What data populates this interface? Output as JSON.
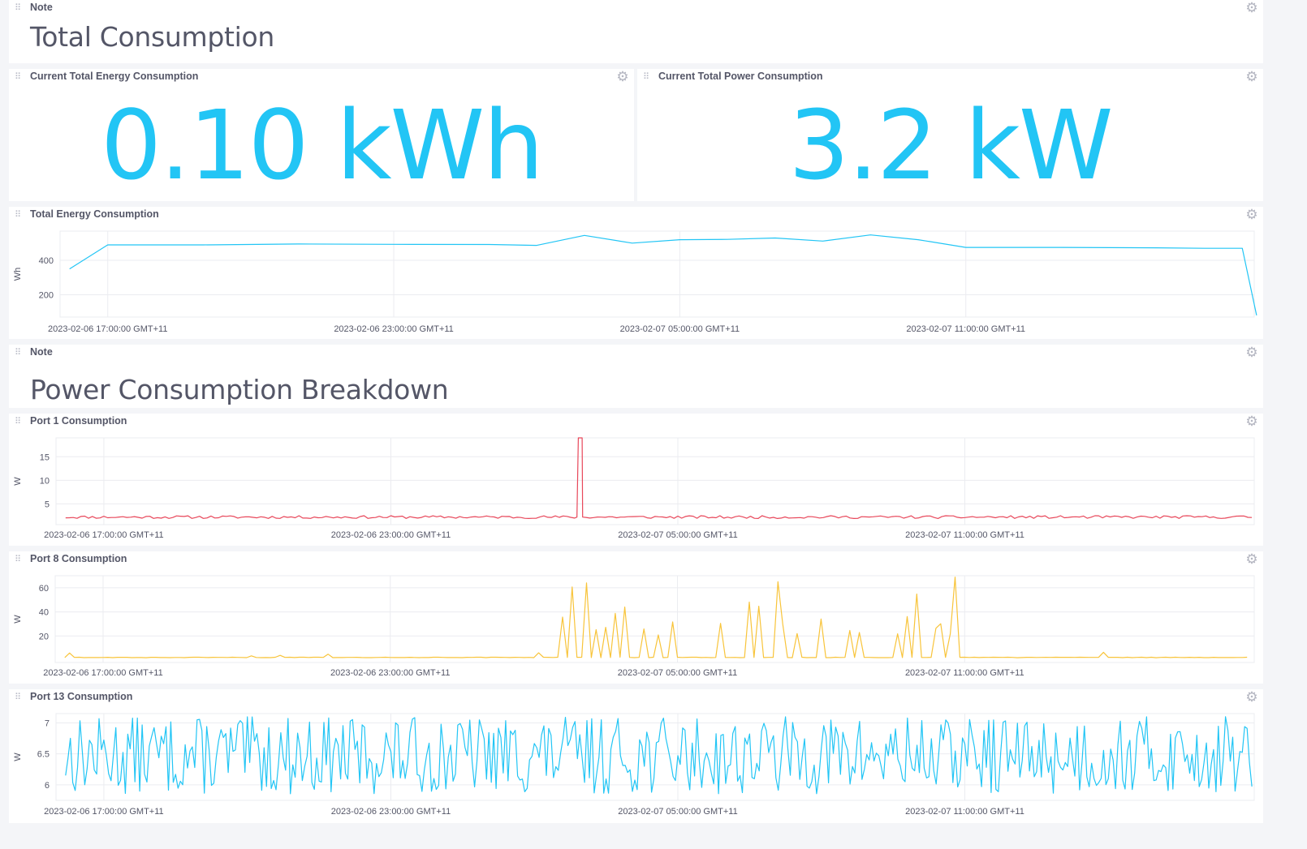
{
  "cells": {
    "note1": {
      "header": "Note",
      "text": "Total Consumption"
    },
    "energy_single": {
      "title": "Current Total Energy Consumption",
      "value": "0.10 kWh"
    },
    "power_single": {
      "title": "Current Total Power Consumption",
      "value": "3.2 kW"
    },
    "energy_graph": {
      "title": "Total Energy Consumption"
    },
    "note2": {
      "header": "Note",
      "text": "Power Consumption Breakdown"
    },
    "port1": {
      "title": "Port 1 Consumption"
    },
    "port8": {
      "title": "Port 8 Consumption"
    },
    "port13": {
      "title": "Port 13 Consumption"
    }
  },
  "icons": {
    "drag": "drag-handle-icon",
    "settings": "gear-icon"
  },
  "colors": {
    "single_stat": "#22c5f5",
    "energy_line": "#22c5f5",
    "port1_line": "#e8475a",
    "port8_line": "#f8c43a",
    "port13_line": "#22c5f5"
  },
  "chart_data": [
    {
      "id": "energy_graph",
      "type": "line",
      "ylabel": "Wh",
      "yticks": [
        200,
        400
      ],
      "ylim": [
        70,
        570
      ],
      "xticks": [
        "2023-02-06 17:00:00 GMT+11",
        "2023-02-06 23:00:00 GMT+11",
        "2023-02-07 05:00:00 GMT+11",
        "2023-02-07 11:00:00 GMT+11"
      ],
      "x_hours": [
        16.2,
        17,
        19,
        21,
        23,
        25,
        26,
        27,
        28,
        29,
        30,
        31,
        32,
        33,
        34,
        35,
        37,
        39,
        40,
        40.8,
        41.1
      ],
      "values": [
        350,
        490,
        490,
        495,
        493,
        492,
        487,
        545,
        500,
        520,
        522,
        530,
        512,
        548,
        520,
        475,
        475,
        473,
        470,
        470,
        80
      ],
      "series": [
        {
          "color": "#22c5f5"
        }
      ]
    },
    {
      "id": "port1",
      "type": "line",
      "ylabel": "W",
      "yticks": [
        5,
        10,
        15
      ],
      "ylim": [
        0.6,
        19
      ],
      "xticks": [
        "2023-02-06 17:00:00 GMT+11",
        "2023-02-06 23:00:00 GMT+11",
        "2023-02-07 05:00:00 GMT+11",
        "2023-02-07 11:00:00 GMT+11"
      ],
      "baseline": 2.2,
      "spike": {
        "x_hours": 26.95,
        "value": 19
      },
      "series": [
        {
          "color": "#e8475a"
        }
      ]
    },
    {
      "id": "port8",
      "type": "line",
      "ylabel": "W",
      "yticks": [
        20,
        40,
        60
      ],
      "ylim": [
        -2,
        70
      ],
      "xticks": [
        "2023-02-06 17:00:00 GMT+11",
        "2023-02-06 23:00:00 GMT+11",
        "2023-02-07 05:00:00 GMT+11",
        "2023-02-07 11:00:00 GMT+11"
      ],
      "baseline": 2,
      "series": [
        {
          "color": "#f8c43a"
        }
      ]
    },
    {
      "id": "port13",
      "type": "line",
      "ylabel": "W",
      "yticks": [
        6,
        6.5,
        7
      ],
      "ylim": [
        5.75,
        7.15
      ],
      "xticks": [
        "2023-02-06 17:00:00 GMT+11",
        "2023-02-06 23:00:00 GMT+11",
        "2023-02-07 05:00:00 GMT+11",
        "2023-02-07 11:00:00 GMT+11"
      ],
      "range": [
        5.85,
        7.1
      ],
      "series": [
        {
          "color": "#22c5f5"
        }
      ]
    }
  ]
}
